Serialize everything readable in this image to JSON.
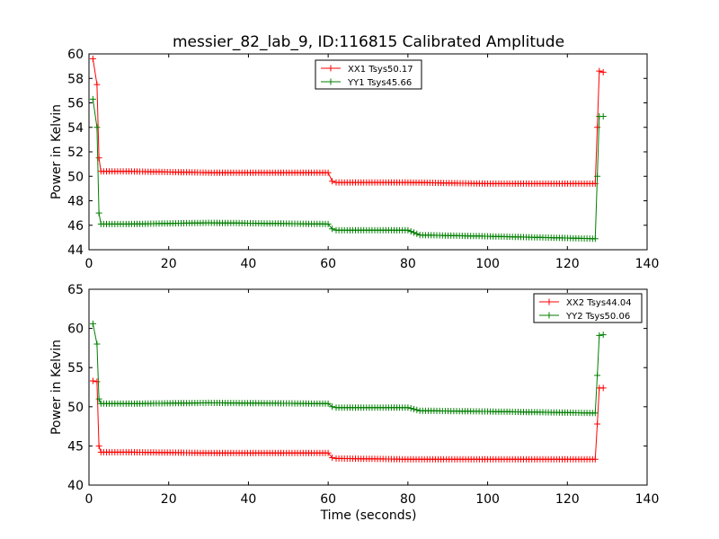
{
  "figure": {
    "title": "messier_82_lab_9, ID:116815 Calibrated Amplitude",
    "xlabel": "Time (seconds)"
  },
  "colors": {
    "series1": "#ff0000",
    "series2": "#007f00"
  },
  "chart_data": [
    {
      "type": "line",
      "ylabel": "Power in Kelvin",
      "xlim": [
        0,
        140
      ],
      "ylim": [
        44,
        60
      ],
      "xticks": [
        0,
        20,
        40,
        60,
        80,
        100,
        120,
        140
      ],
      "yticks": [
        44,
        46,
        48,
        50,
        52,
        54,
        56,
        58,
        60
      ],
      "legend": "top-center",
      "series": [
        {
          "name": "XX1 Tsys50.17",
          "color": "#ff0000",
          "points": [
            [
              1,
              59.6
            ],
            [
              2,
              57.5
            ],
            [
              2.5,
              51.5
            ],
            [
              3,
              50.4
            ],
            [
              10,
              50.4
            ],
            [
              30,
              50.3
            ],
            [
              60,
              50.3
            ],
            [
              61,
              49.6
            ],
            [
              62,
              49.5
            ],
            [
              80,
              49.5
            ],
            [
              100,
              49.4
            ],
            [
              127,
              49.4
            ],
            [
              127.5,
              54
            ],
            [
              128,
              58.6
            ],
            [
              129,
              58.5
            ]
          ]
        },
        {
          "name": "YY1 Tsys45.66",
          "color": "#007f00",
          "points": [
            [
              1,
              56.3
            ],
            [
              2,
              54
            ],
            [
              2.5,
              47
            ],
            [
              3,
              46.1
            ],
            [
              10,
              46.1
            ],
            [
              30,
              46.2
            ],
            [
              60,
              46.1
            ],
            [
              61,
              45.7
            ],
            [
              62,
              45.6
            ],
            [
              80,
              45.6
            ],
            [
              83,
              45.2
            ],
            [
              100,
              45.1
            ],
            [
              127,
              44.9
            ],
            [
              127.5,
              50
            ],
            [
              128,
              54.9
            ],
            [
              129,
              54.9
            ]
          ]
        }
      ]
    },
    {
      "type": "line",
      "ylabel": "Power in Kelvin",
      "xlim": [
        0,
        140
      ],
      "ylim": [
        40,
        65
      ],
      "xticks": [
        0,
        20,
        40,
        60,
        80,
        100,
        120,
        140
      ],
      "yticks": [
        40,
        45,
        50,
        55,
        60,
        65
      ],
      "legend": "top-right",
      "series": [
        {
          "name": "XX2 Tsys44.04",
          "color": "#ff0000",
          "points": [
            [
              1,
              53.3
            ],
            [
              2,
              53.2
            ],
            [
              2.5,
              45
            ],
            [
              3,
              44.2
            ],
            [
              10,
              44.2
            ],
            [
              30,
              44.1
            ],
            [
              60,
              44.1
            ],
            [
              61,
              43.5
            ],
            [
              62,
              43.4
            ],
            [
              80,
              43.3
            ],
            [
              100,
              43.3
            ],
            [
              127,
              43.3
            ],
            [
              127.5,
              47.8
            ],
            [
              128,
              52.4
            ],
            [
              129,
              52.4
            ]
          ]
        },
        {
          "name": "YY2 Tsys50.06",
          "color": "#007f00",
          "points": [
            [
              1,
              60.6
            ],
            [
              2,
              58
            ],
            [
              2.5,
              51
            ],
            [
              3,
              50.4
            ],
            [
              10,
              50.4
            ],
            [
              30,
              50.5
            ],
            [
              60,
              50.4
            ],
            [
              61,
              50.0
            ],
            [
              62,
              49.9
            ],
            [
              80,
              49.9
            ],
            [
              83,
              49.5
            ],
            [
              100,
              49.4
            ],
            [
              127,
              49.2
            ],
            [
              127.5,
              54
            ],
            [
              128,
              59.1
            ],
            [
              129,
              59.2
            ]
          ]
        }
      ]
    }
  ]
}
